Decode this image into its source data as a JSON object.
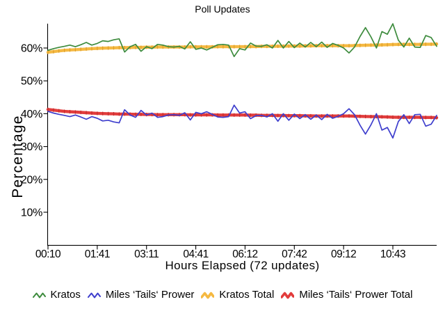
{
  "chart_data": {
    "type": "line",
    "title": "Poll Updates",
    "xlabel": "Hours Elapsed (72 updates)",
    "ylabel": "Percentage",
    "background": "#ffffff",
    "grid": false,
    "legend_position": "bottom",
    "n_updates": 72,
    "ylim": [
      0,
      68
    ],
    "y_tick_labels": [
      "10%",
      "20%",
      "30%",
      "40%",
      "50%",
      "60%"
    ],
    "y_tick_values": [
      10,
      20,
      30,
      40,
      50,
      60
    ],
    "x_tick_labels": [
      "00:10",
      "01:41",
      "03:11",
      "04:41",
      "06:12",
      "07:42",
      "09:12",
      "10:43"
    ],
    "x_tick_indices": [
      0,
      9,
      18,
      27,
      36,
      45,
      54,
      63
    ],
    "series": [
      {
        "name": "Kratos",
        "color": "#3d8b3d",
        "width": 1.7,
        "total": false,
        "values": [
          59.3,
          59.8,
          60.2,
          60.5,
          60.9,
          60.4,
          61.0,
          61.7,
          60.9,
          61.4,
          62.2,
          62.0,
          62.5,
          62.8,
          58.8,
          60.4,
          61.1,
          59.0,
          60.4,
          59.8,
          61.1,
          60.9,
          60.4,
          60.3,
          60.5,
          59.7,
          61.9,
          59.6,
          60.0,
          59.4,
          60.2,
          61.0,
          61.1,
          60.9,
          57.4,
          59.8,
          59.4,
          61.5,
          60.6,
          60.5,
          61.0,
          60.0,
          62.3,
          60.0,
          62.0,
          60.1,
          61.5,
          60.3,
          61.7,
          60.4,
          61.8,
          60.2,
          61.4,
          60.8,
          60.0,
          58.5,
          60.3,
          63.5,
          66.2,
          63.4,
          60.0,
          65.0,
          64.2,
          67.4,
          62.4,
          60.3,
          63.0,
          60.3,
          60.2,
          63.8,
          63.2,
          60.5
        ]
      },
      {
        "name": "Miles ‘Tails‘ Prower",
        "color": "#3e3ecd",
        "width": 1.7,
        "total": false,
        "values": [
          40.7,
          40.2,
          39.8,
          39.5,
          39.1,
          39.6,
          39.0,
          38.3,
          39.1,
          38.6,
          37.8,
          38.0,
          37.5,
          37.2,
          41.2,
          39.6,
          38.9,
          41.0,
          39.6,
          40.2,
          38.9,
          39.1,
          39.6,
          39.7,
          39.5,
          40.3,
          38.1,
          40.4,
          40.0,
          40.6,
          39.8,
          39.0,
          38.9,
          39.1,
          42.6,
          40.2,
          40.6,
          38.5,
          39.4,
          39.5,
          39.0,
          40.0,
          37.7,
          40.0,
          38.0,
          39.9,
          38.5,
          39.7,
          38.3,
          39.6,
          38.2,
          39.8,
          38.6,
          39.2,
          40.0,
          41.5,
          39.7,
          36.5,
          33.8,
          36.6,
          40.0,
          35.0,
          35.8,
          32.6,
          37.6,
          39.7,
          37.0,
          39.7,
          39.8,
          36.2,
          36.8,
          39.5
        ]
      },
      {
        "name": "Kratos Total",
        "color": "#f5b942",
        "notch_color": "#dd9f2b",
        "width": 4.4,
        "total": true,
        "values": [
          58.7,
          58.9,
          59.1,
          59.3,
          59.4,
          59.5,
          59.6,
          59.7,
          59.8,
          59.9,
          59.95,
          60.0,
          60.05,
          60.1,
          60.1,
          60.15,
          60.2,
          60.2,
          60.25,
          60.25,
          60.3,
          60.3,
          60.3,
          60.3,
          60.3,
          60.3,
          60.35,
          60.35,
          60.35,
          60.35,
          60.35,
          60.4,
          60.4,
          60.4,
          60.4,
          60.4,
          60.4,
          60.45,
          60.45,
          60.5,
          60.5,
          60.5,
          60.55,
          60.55,
          60.6,
          60.6,
          60.6,
          60.65,
          60.65,
          60.7,
          60.7,
          60.7,
          60.7,
          60.7,
          60.7,
          60.7,
          60.75,
          60.8,
          60.85,
          60.9,
          60.9,
          60.95,
          61.0,
          61.05,
          61.1,
          61.1,
          61.1,
          61.1,
          61.1,
          61.15,
          61.15,
          61.2
        ]
      },
      {
        "name": "Miles ‘Tails‘ Prower Total",
        "color": "#e23c3c",
        "notch_color": "#c32f2f",
        "width": 4.4,
        "total": true,
        "values": [
          41.3,
          41.1,
          40.9,
          40.7,
          40.6,
          40.5,
          40.4,
          40.3,
          40.2,
          40.1,
          40.05,
          40.0,
          39.95,
          39.9,
          39.9,
          39.85,
          39.8,
          39.8,
          39.75,
          39.75,
          39.7,
          39.7,
          39.7,
          39.7,
          39.7,
          39.7,
          39.65,
          39.65,
          39.65,
          39.65,
          39.65,
          39.6,
          39.6,
          39.6,
          39.6,
          39.6,
          39.6,
          39.55,
          39.55,
          39.5,
          39.5,
          39.5,
          39.45,
          39.45,
          39.4,
          39.4,
          39.4,
          39.35,
          39.35,
          39.3,
          39.3,
          39.3,
          39.3,
          39.3,
          39.3,
          39.3,
          39.25,
          39.2,
          39.15,
          39.1,
          39.1,
          39.05,
          39.0,
          38.95,
          38.9,
          38.9,
          38.9,
          38.9,
          38.9,
          38.85,
          38.85,
          38.8
        ]
      }
    ]
  }
}
